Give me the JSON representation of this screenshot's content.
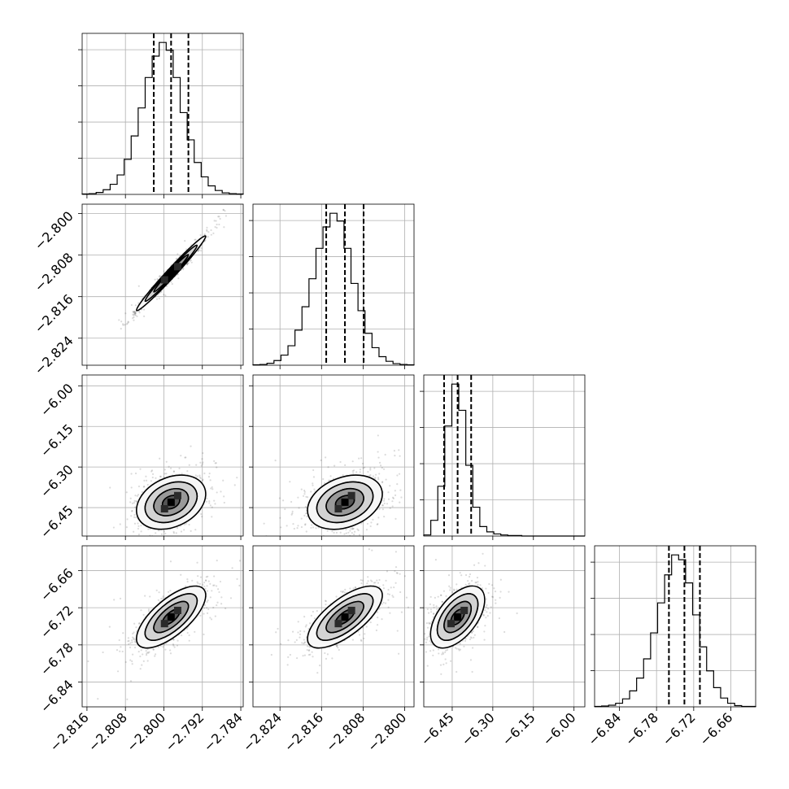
{
  "chart_data": {
    "type": "corner",
    "title": "",
    "grid": true,
    "parameters": [
      {
        "label": "",
        "range": [
          -2.817,
          -2.7835
        ],
        "mean": -2.7985,
        "std": 0.0036,
        "quantiles": [
          -2.8021,
          -2.7985,
          -2.7949
        ],
        "ticks": [
          -2.816,
          -2.808,
          -2.8,
          -2.792,
          -2.784
        ],
        "tick_labels": [
          "−2.816",
          "−2.808",
          "−2.800",
          "−2.792",
          "−2.784"
        ]
      },
      {
        "label": "",
        "range": [
          -2.8292,
          -2.7982
        ],
        "mean": -2.8115,
        "std": 0.0036,
        "quantiles": [
          -2.8151,
          -2.8115,
          -2.8079
        ],
        "ticks": [
          -2.8,
          -2.808,
          -2.816,
          -2.824
        ],
        "tick_labels": [
          "−2.800",
          "−2.808",
          "−2.816",
          "−2.824"
        ],
        "x_ticks": [
          -2.824,
          -2.816,
          -2.808,
          -2.8
        ],
        "x_tick_labels": [
          "−2.824",
          "−2.816",
          "−2.808",
          "−2.800"
        ]
      },
      {
        "label": "",
        "range": [
          -6.555,
          -5.96
        ],
        "mean": -6.43,
        "std": 0.05,
        "quantiles": [
          -6.48,
          -6.43,
          -6.38
        ],
        "ticks": [
          -6.0,
          -6.15,
          -6.3,
          -6.45
        ],
        "tick_labels": [
          "−6.00",
          "−6.15",
          "−6.30",
          "−6.45"
        ],
        "x_ticks": [
          -6.45,
          -6.3,
          -6.15,
          -6.0
        ],
        "x_tick_labels": [
          "−6.45",
          "−6.30",
          "−6.15",
          "−6.00"
        ]
      },
      {
        "label": "",
        "range": [
          -6.88,
          -6.62
        ],
        "mean": -6.735,
        "std": 0.025,
        "quantiles": [
          -6.76,
          -6.735,
          -6.71
        ],
        "ticks": [
          -6.66,
          -6.72,
          -6.78,
          -6.84
        ],
        "tick_labels": [
          "−6.66",
          "−6.72",
          "−6.78",
          "−6.84"
        ],
        "x_ticks": [
          -6.84,
          -6.78,
          -6.72,
          -6.66
        ],
        "x_tick_labels": [
          "−6.84",
          "−6.78",
          "−6.72",
          "−6.66"
        ]
      }
    ],
    "histograms": [
      {
        "parameter": 0,
        "counts": [
          1,
          2,
          5,
          12,
          26,
          50,
          90,
          150,
          222,
          300,
          355,
          390,
          370,
          300,
          210,
          140,
          82,
          45,
          22,
          10,
          4,
          2,
          1
        ]
      },
      {
        "parameter": 1,
        "counts": [
          1,
          2,
          5,
          12,
          26,
          50,
          90,
          150,
          222,
          300,
          355,
          390,
          370,
          300,
          210,
          140,
          82,
          45,
          22,
          10,
          4,
          2,
          1
        ]
      },
      {
        "parameter": 2,
        "counts": [
          2,
          30,
          95,
          210,
          290,
          240,
          135,
          55,
          18,
          8,
          4,
          2,
          1,
          1,
          0,
          0,
          0,
          0,
          0,
          0,
          0,
          0,
          0
        ]
      },
      {
        "parameter": 3,
        "counts": [
          1,
          2,
          4,
          9,
          20,
          40,
          72,
          120,
          185,
          260,
          330,
          380,
          368,
          310,
          230,
          150,
          90,
          48,
          22,
          9,
          3,
          1,
          1
        ]
      }
    ],
    "pairs": [
      {
        "x": 0,
        "y": 1,
        "correlation": 0.985
      },
      {
        "x": 0,
        "y": 2,
        "correlation": 0.3
      },
      {
        "x": 1,
        "y": 2,
        "correlation": 0.3
      },
      {
        "x": 0,
        "y": 3,
        "correlation": 0.7
      },
      {
        "x": 1,
        "y": 3,
        "correlation": 0.7
      },
      {
        "x": 2,
        "y": 3,
        "correlation": 0.55
      }
    ],
    "contour_levels_sigma": [
      0.5,
      1.0,
      1.5,
      2.0
    ],
    "contour_fill_colors": [
      "#000000",
      "#555555",
      "#999999",
      "#d3d3d3",
      "#f7f7f7"
    ],
    "hist_color": "#000000",
    "quantile_line_style": "dashed"
  }
}
